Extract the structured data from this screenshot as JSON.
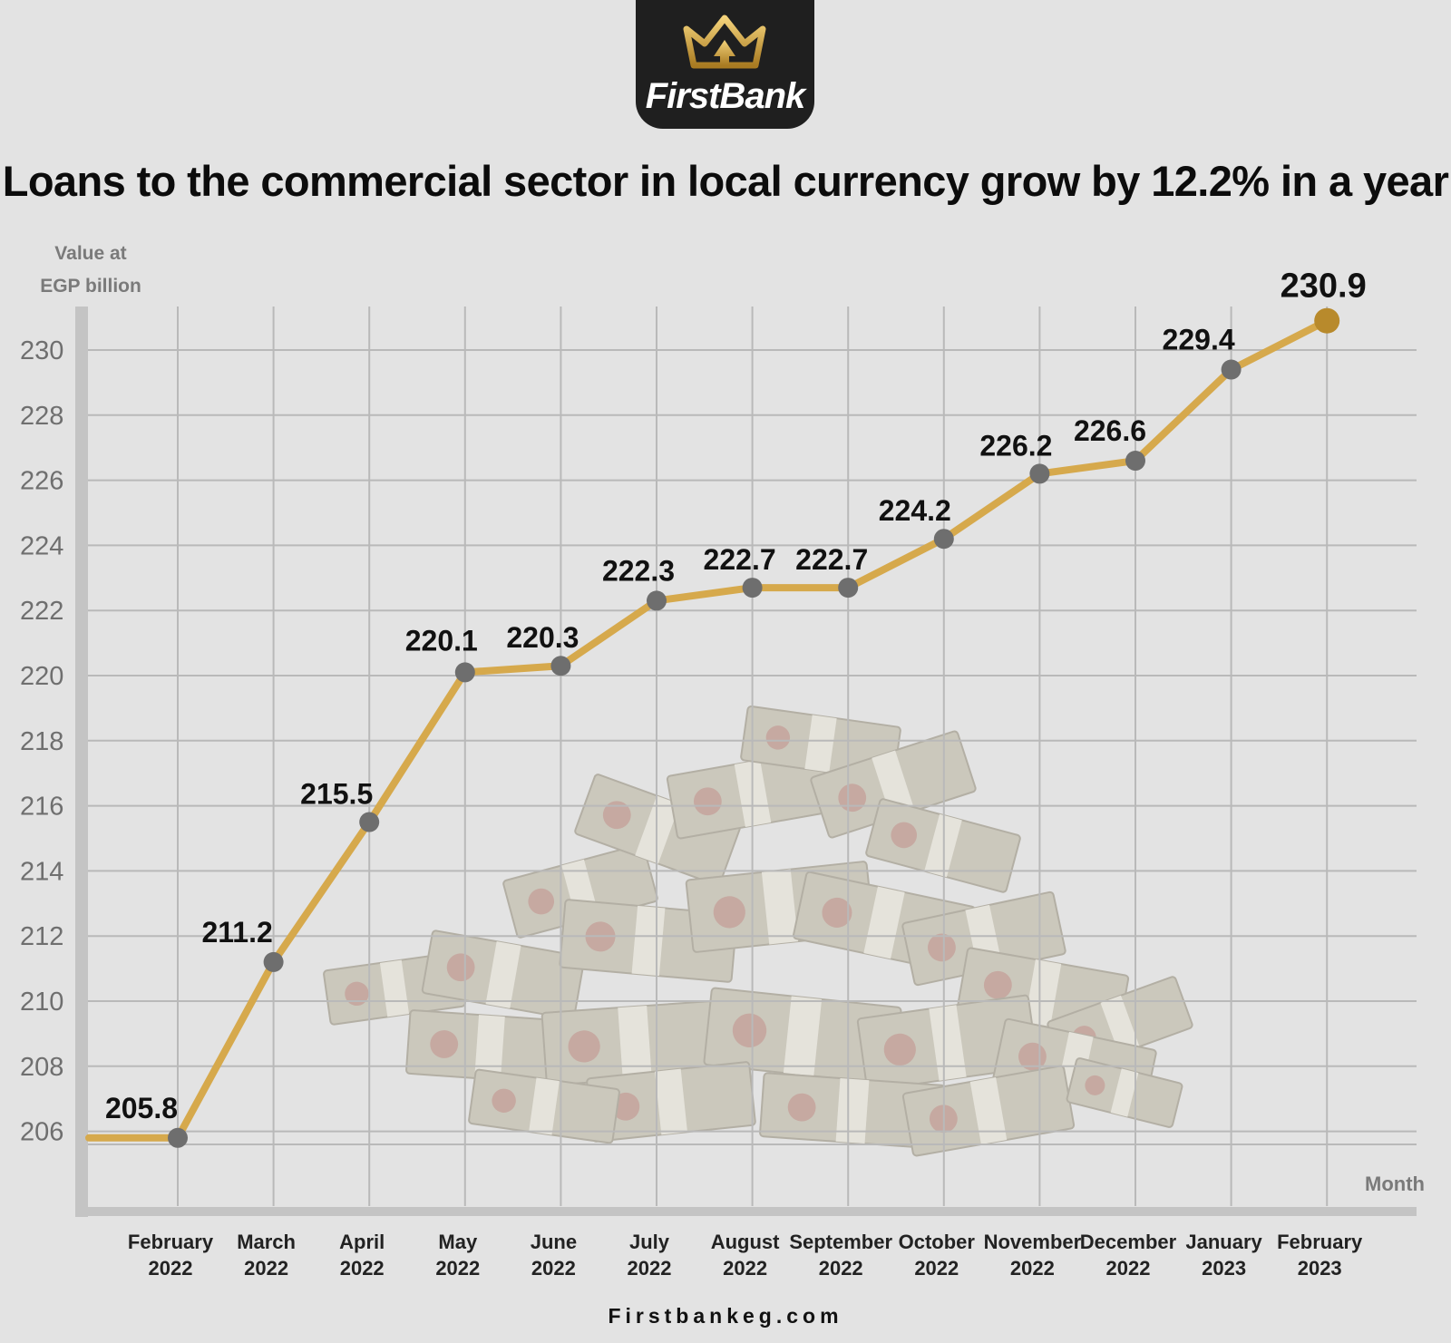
{
  "brand": {
    "name": "FirstBank",
    "website": "Firstbankeg.com",
    "logo_icon": "crown-icon",
    "badge_color": "#1f1f1f",
    "gold_color": "#c9a13a"
  },
  "chart_data": {
    "type": "line",
    "title": "Loans to the commercial sector in local currency grow by 12.2% in a year",
    "ylabel_lines": [
      "Value at",
      "EGP billion"
    ],
    "xlabel": "Month",
    "ylim": [
      204,
      231
    ],
    "yticks": [
      206,
      208,
      210,
      212,
      214,
      216,
      218,
      220,
      222,
      224,
      226,
      228,
      230
    ],
    "grid": true,
    "line_color": "#d6a94c",
    "point_color": "#6e6e6e",
    "highlight_color": "#b88a2c",
    "categories": [
      {
        "month": "February",
        "year": "2022"
      },
      {
        "month": "March",
        "year": "2022"
      },
      {
        "month": "April",
        "year": "2022"
      },
      {
        "month": "May",
        "year": "2022"
      },
      {
        "month": "June",
        "year": "2022"
      },
      {
        "month": "July",
        "year": "2022"
      },
      {
        "month": "August",
        "year": "2022"
      },
      {
        "month": "September",
        "year": "2022"
      },
      {
        "month": "October",
        "year": "2022"
      },
      {
        "month": "November",
        "year": "2022"
      },
      {
        "month": "December",
        "year": "2022"
      },
      {
        "month": "January",
        "year": "2023"
      },
      {
        "month": "February",
        "year": "2023"
      }
    ],
    "values": [
      205.8,
      211.2,
      215.5,
      220.1,
      220.3,
      222.3,
      222.7,
      222.7,
      224.2,
      226.2,
      226.6,
      229.4,
      230.9
    ],
    "data_labels": [
      "205.8",
      "211.2",
      "215.5",
      "220.1",
      "220.3",
      "222.3",
      "222.7",
      "222.7",
      "224.2",
      "226.2",
      "226.6",
      "229.4",
      "230.9"
    ]
  }
}
